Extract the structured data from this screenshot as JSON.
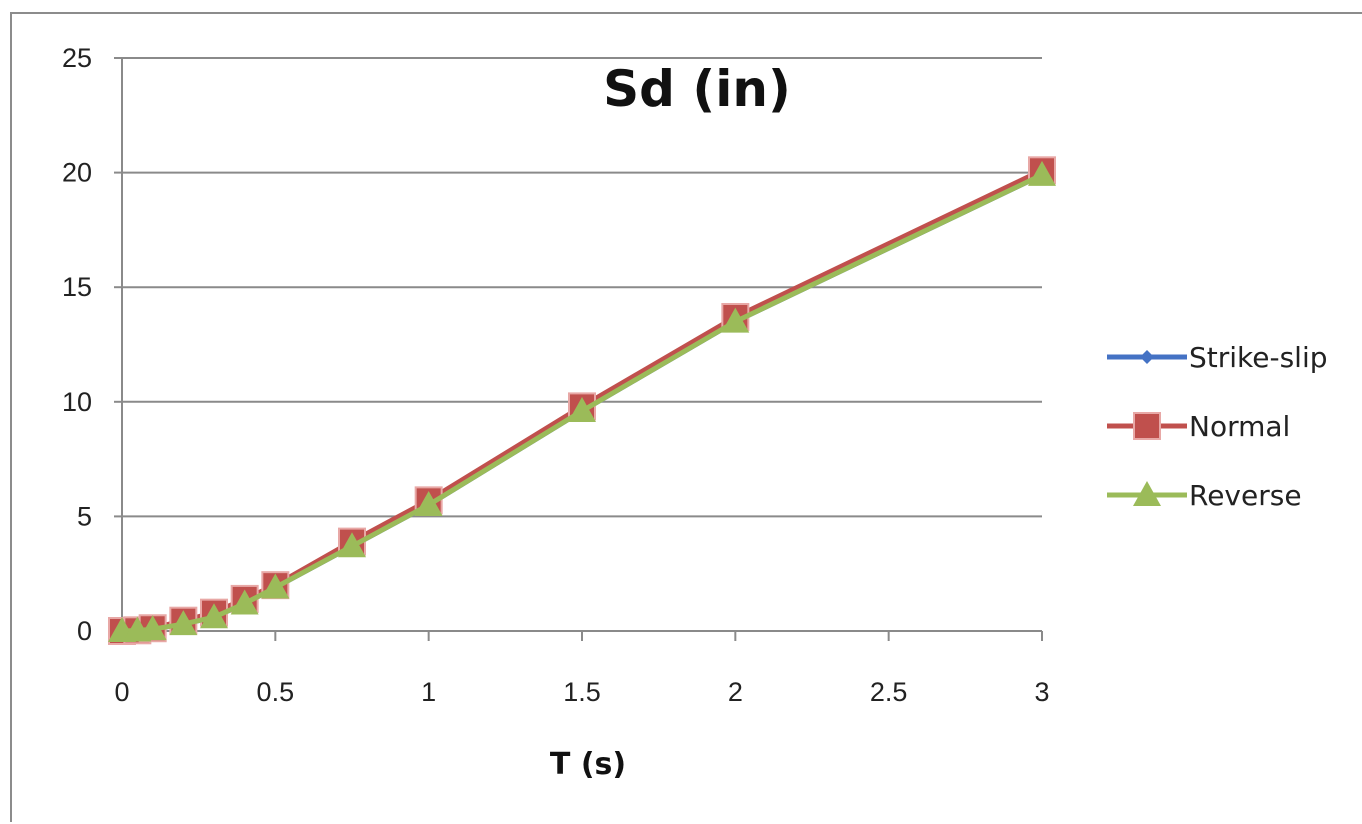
{
  "chart_data": {
    "type": "line",
    "title": "Sd (in)",
    "xlabel": "T (s)",
    "ylabel": "",
    "xlim": [
      0,
      3
    ],
    "ylim": [
      0,
      25
    ],
    "x_ticks": [
      "0",
      "0.5",
      "1",
      "1.5",
      "2",
      "2.5",
      "3"
    ],
    "y_ticks": [
      "0",
      "5",
      "10",
      "15",
      "20",
      "25"
    ],
    "grid": "horizontal",
    "legend_position": "right",
    "x": [
      0,
      0.05,
      0.1,
      0.2,
      0.3,
      0.4,
      0.5,
      0.75,
      1,
      1.5,
      2,
      3
    ],
    "series": [
      {
        "name": "Strike-slip",
        "color": "#4472c4",
        "marker": "diamond",
        "values": [
          0,
          0.02,
          0.08,
          0.3,
          0.6,
          1.2,
          1.9,
          3.7,
          5.5,
          9.6,
          13.5,
          19.9
        ]
      },
      {
        "name": "Normal",
        "color": "#c0504d",
        "marker": "square",
        "values": [
          0,
          0.03,
          0.12,
          0.45,
          0.8,
          1.4,
          2.0,
          3.9,
          5.7,
          9.8,
          13.7,
          20.1
        ]
      },
      {
        "name": "Reverse",
        "color": "#9bbb59",
        "marker": "triangle",
        "values": [
          0,
          0.02,
          0.08,
          0.3,
          0.6,
          1.2,
          1.9,
          3.7,
          5.5,
          9.6,
          13.5,
          19.9
        ]
      }
    ]
  }
}
